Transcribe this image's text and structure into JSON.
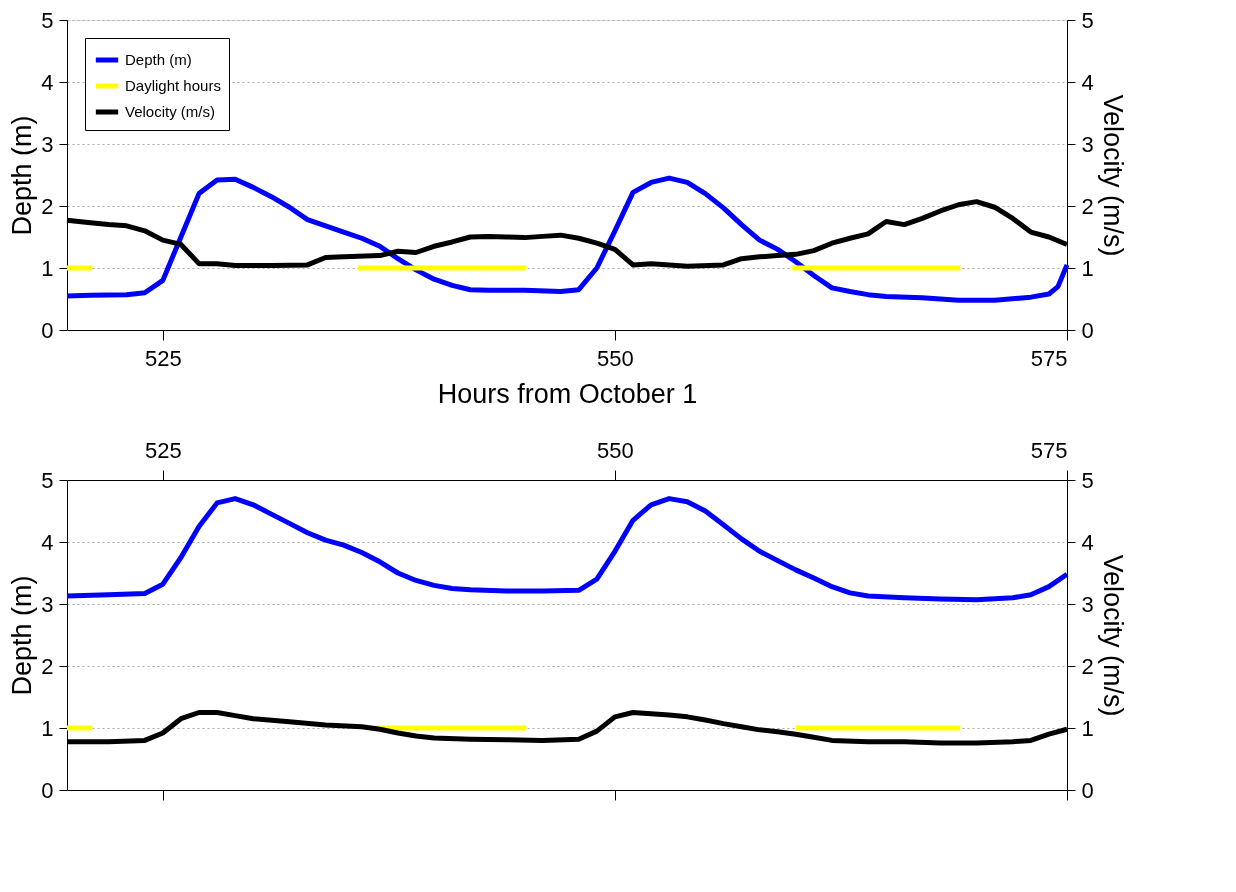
{
  "chart_data": [
    {
      "type": "line",
      "xlabel": "Hours from October 1",
      "ylabel": "Depth (m)",
      "y2label": "Velocity (m/s)",
      "xlim": [
        519.7,
        575
      ],
      "xticks": [
        525,
        550,
        575
      ],
      "ylim": [
        0,
        5
      ],
      "yticks": [
        0,
        1,
        2,
        3,
        4,
        5
      ],
      "y2lim": [
        0,
        5
      ],
      "y2ticks": [
        0,
        1,
        2,
        3,
        4,
        5
      ],
      "grid": "y",
      "legend": "top left",
      "line_style": "solid",
      "series": [
        {
          "name": "Depth (m)",
          "color": "#0000ff",
          "x": [
            519.7,
            521,
            523,
            524,
            525,
            526,
            527,
            528,
            529,
            530,
            531,
            532,
            533,
            534,
            535,
            536,
            537,
            538,
            539,
            540,
            541,
            542,
            543,
            545,
            547,
            548,
            549,
            550,
            551,
            552,
            553,
            554,
            555,
            556,
            557,
            558,
            559,
            560,
            561,
            562,
            563,
            564,
            565,
            567,
            569,
            571,
            573,
            574,
            574.5,
            575
          ],
          "values": [
            0.55,
            0.56,
            0.57,
            0.6,
            0.8,
            1.5,
            2.2,
            2.42,
            2.43,
            2.3,
            2.15,
            1.98,
            1.78,
            1.68,
            1.58,
            1.48,
            1.35,
            1.15,
            0.97,
            0.82,
            0.72,
            0.65,
            0.64,
            0.64,
            0.62,
            0.65,
            1.0,
            1.6,
            2.22,
            2.38,
            2.45,
            2.38,
            2.2,
            1.97,
            1.7,
            1.45,
            1.3,
            1.1,
            0.88,
            0.68,
            0.62,
            0.57,
            0.54,
            0.52,
            0.48,
            0.48,
            0.53,
            0.58,
            0.7,
            1.05
          ]
        },
        {
          "name": "Daylight hours",
          "color": "#ffff00",
          "x": [
            519.7,
            521.1,
            528,
            535.8,
            545.1,
            552,
            559.8,
            569.1
          ],
          "values": [
            1,
            1,
            null,
            1,
            1,
            null,
            1,
            1
          ]
        },
        {
          "name": "Velocity (m/s)",
          "color": "#000000",
          "axis": "y2",
          "x": [
            519.7,
            521,
            522,
            523,
            524,
            525,
            526,
            527,
            528,
            529,
            531,
            533,
            534,
            535,
            537,
            538,
            539,
            540,
            541,
            542,
            543,
            544,
            545,
            546,
            547,
            548,
            549,
            550,
            551,
            552,
            553,
            554,
            556,
            557,
            558,
            559,
            560,
            561,
            562,
            563,
            564,
            565,
            566,
            567,
            568,
            569,
            570,
            571,
            572,
            573,
            574,
            575
          ],
          "values": [
            1.77,
            1.73,
            1.7,
            1.68,
            1.6,
            1.45,
            1.38,
            1.07,
            1.07,
            1.04,
            1.04,
            1.05,
            1.17,
            1.18,
            1.2,
            1.27,
            1.25,
            1.35,
            1.42,
            1.5,
            1.51,
            1.5,
            1.49,
            1.51,
            1.53,
            1.48,
            1.4,
            1.3,
            1.05,
            1.07,
            1.05,
            1.03,
            1.05,
            1.15,
            1.18,
            1.2,
            1.22,
            1.28,
            1.4,
            1.48,
            1.55,
            1.75,
            1.7,
            1.8,
            1.92,
            2.02,
            2.07,
            1.98,
            1.8,
            1.58,
            1.5,
            1.38
          ]
        }
      ]
    },
    {
      "type": "line",
      "ylabel": "Depth (m)",
      "y2label": "Velocity (m/s)",
      "xlim": [
        519.7,
        575
      ],
      "xticks": [
        525,
        550,
        575
      ],
      "x2lim": [
        519.7,
        575
      ],
      "x2ticks": [
        525,
        550,
        575
      ],
      "tick_labels": "y",
      "ylim": [
        0,
        5
      ],
      "yticks": [
        0,
        1,
        2,
        3,
        4,
        5
      ],
      "y2lim": [
        0,
        5
      ],
      "y2ticks": [
        0,
        1,
        2,
        3,
        4,
        5
      ],
      "grid": "y",
      "line_style": "solid",
      "series": [
        {
          "color": "#0000ff",
          "x": [
            519.7,
            522,
            524,
            525,
            526,
            527,
            528,
            529,
            530,
            531,
            532,
            533,
            534,
            535,
            536,
            537,
            538,
            539,
            540,
            541,
            542,
            544,
            546,
            548,
            549,
            550,
            551,
            552,
            553,
            554,
            555,
            556,
            557,
            558,
            559,
            560,
            561,
            562,
            563,
            564,
            566,
            568,
            570,
            572,
            573,
            574,
            575
          ],
          "values": [
            3.13,
            3.15,
            3.17,
            3.32,
            3.75,
            4.25,
            4.63,
            4.7,
            4.6,
            4.45,
            4.3,
            4.15,
            4.03,
            3.95,
            3.83,
            3.68,
            3.5,
            3.38,
            3.3,
            3.25,
            3.23,
            3.21,
            3.21,
            3.22,
            3.4,
            3.85,
            4.35,
            4.6,
            4.7,
            4.65,
            4.5,
            4.28,
            4.05,
            3.85,
            3.7,
            3.55,
            3.42,
            3.28,
            3.18,
            3.13,
            3.1,
            3.08,
            3.07,
            3.1,
            3.15,
            3.28,
            3.48
          ]
        },
        {
          "color": "#ffff00",
          "x": [
            519.7,
            521.1,
            528,
            536.4,
            545.1,
            552,
            560,
            569.1
          ],
          "values": [
            1,
            1,
            null,
            1,
            1,
            null,
            1,
            1
          ]
        },
        {
          "color": "#000000",
          "axis": "y2",
          "x": [
            519.7,
            522,
            524,
            525,
            526,
            527,
            528,
            529,
            530,
            532,
            534,
            536,
            537,
            538,
            539,
            540,
            542,
            544,
            546,
            548,
            549,
            550,
            551,
            552,
            553,
            554,
            555,
            556,
            557,
            558,
            559,
            560,
            561,
            562,
            564,
            566,
            568,
            570,
            572,
            573,
            574,
            575
          ],
          "values": [
            0.78,
            0.78,
            0.8,
            0.92,
            1.15,
            1.25,
            1.25,
            1.2,
            1.15,
            1.1,
            1.05,
            1.02,
            0.98,
            0.92,
            0.87,
            0.84,
            0.82,
            0.81,
            0.8,
            0.82,
            0.95,
            1.18,
            1.25,
            1.23,
            1.21,
            1.18,
            1.13,
            1.07,
            1.02,
            0.97,
            0.94,
            0.9,
            0.85,
            0.8,
            0.78,
            0.78,
            0.76,
            0.76,
            0.78,
            0.8,
            0.9,
            0.98
          ]
        }
      ]
    }
  ]
}
